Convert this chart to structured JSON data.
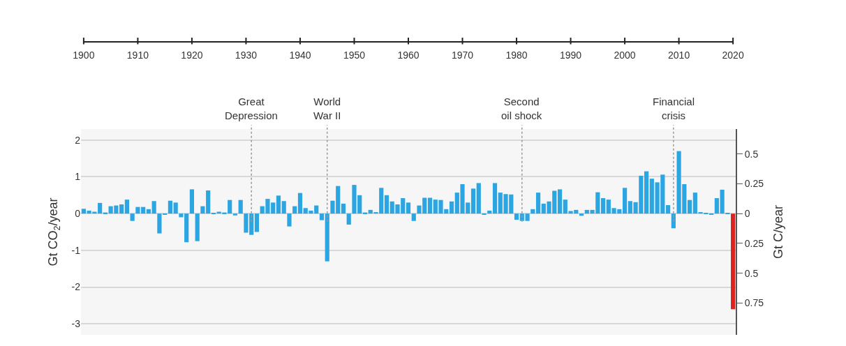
{
  "chart_data": {
    "type": "bar",
    "x": [
      1900,
      1901,
      1902,
      1903,
      1904,
      1905,
      1906,
      1907,
      1908,
      1909,
      1910,
      1911,
      1912,
      1913,
      1914,
      1915,
      1916,
      1917,
      1918,
      1919,
      1920,
      1921,
      1922,
      1923,
      1924,
      1925,
      1926,
      1927,
      1928,
      1929,
      1930,
      1931,
      1932,
      1933,
      1934,
      1935,
      1936,
      1937,
      1938,
      1939,
      1940,
      1941,
      1942,
      1943,
      1944,
      1945,
      1946,
      1947,
      1948,
      1949,
      1950,
      1951,
      1952,
      1953,
      1954,
      1955,
      1956,
      1957,
      1958,
      1959,
      1960,
      1961,
      1962,
      1963,
      1964,
      1965,
      1966,
      1967,
      1968,
      1969,
      1970,
      1971,
      1972,
      1973,
      1974,
      1975,
      1976,
      1977,
      1978,
      1979,
      1980,
      1981,
      1982,
      1983,
      1984,
      1985,
      1986,
      1987,
      1988,
      1989,
      1990,
      1991,
      1992,
      1993,
      1994,
      1995,
      1996,
      1997,
      1998,
      1999,
      2000,
      2001,
      2002,
      2003,
      2004,
      2005,
      2006,
      2007,
      2008,
      2009,
      2010,
      2011,
      2012,
      2013,
      2014,
      2015,
      2016,
      2017,
      2018,
      2019,
      2020
    ],
    "values": [
      0.13,
      0.08,
      0.05,
      0.29,
      0.03,
      0.2,
      0.22,
      0.25,
      0.38,
      -0.2,
      0.18,
      0.18,
      0.12,
      0.34,
      -0.54,
      -0.03,
      0.35,
      0.3,
      -0.1,
      -0.78,
      0.66,
      -0.75,
      0.2,
      0.63,
      0.02,
      0.05,
      0.03,
      0.37,
      -0.05,
      0.37,
      -0.52,
      -0.58,
      -0.5,
      0.2,
      0.4,
      0.3,
      0.49,
      0.34,
      -0.35,
      0.2,
      0.56,
      0.15,
      0.08,
      0.22,
      -0.18,
      -1.3,
      0.35,
      0.75,
      0.27,
      -0.3,
      0.78,
      0.5,
      0.03,
      0.1,
      0.04,
      0.7,
      0.5,
      0.33,
      0.25,
      0.42,
      0.3,
      -0.2,
      0.22,
      0.43,
      0.43,
      0.38,
      0.37,
      0.12,
      0.33,
      0.57,
      0.8,
      0.3,
      0.68,
      0.83,
      -0.03,
      0.08,
      0.83,
      0.57,
      0.53,
      0.52,
      -0.17,
      -0.2,
      -0.2,
      0.12,
      0.57,
      0.27,
      0.33,
      0.62,
      0.66,
      0.38,
      0.07,
      0.1,
      -0.06,
      0.1,
      0.1,
      0.58,
      0.42,
      0.38,
      0.15,
      0.12,
      0.7,
      0.34,
      0.31,
      1.03,
      1.15,
      0.95,
      0.85,
      1.06,
      0.23,
      -0.4,
      1.7,
      0.8,
      0.37,
      0.57,
      0.04,
      0.01,
      -0.02,
      0.42,
      0.65,
      0.01,
      -2.6
    ],
    "colors": [
      "#2ba6e3",
      "#2ba6e3",
      "#2ba6e3",
      "#2ba6e3",
      "#2ba6e3",
      "#2ba6e3",
      "#2ba6e3",
      "#2ba6e3",
      "#2ba6e3",
      "#2ba6e3",
      "#2ba6e3",
      "#2ba6e3",
      "#2ba6e3",
      "#2ba6e3",
      "#2ba6e3",
      "#2ba6e3",
      "#2ba6e3",
      "#2ba6e3",
      "#2ba6e3",
      "#2ba6e3",
      "#2ba6e3",
      "#2ba6e3",
      "#2ba6e3",
      "#2ba6e3",
      "#2ba6e3",
      "#2ba6e3",
      "#2ba6e3",
      "#2ba6e3",
      "#2ba6e3",
      "#2ba6e3",
      "#2ba6e3",
      "#2ba6e3",
      "#2ba6e3",
      "#2ba6e3",
      "#2ba6e3",
      "#2ba6e3",
      "#2ba6e3",
      "#2ba6e3",
      "#2ba6e3",
      "#2ba6e3",
      "#2ba6e3",
      "#2ba6e3",
      "#2ba6e3",
      "#2ba6e3",
      "#2ba6e3",
      "#2ba6e3",
      "#2ba6e3",
      "#2ba6e3",
      "#2ba6e3",
      "#2ba6e3",
      "#2ba6e3",
      "#2ba6e3",
      "#2ba6e3",
      "#2ba6e3",
      "#2ba6e3",
      "#2ba6e3",
      "#2ba6e3",
      "#2ba6e3",
      "#2ba6e3",
      "#2ba6e3",
      "#2ba6e3",
      "#2ba6e3",
      "#2ba6e3",
      "#2ba6e3",
      "#2ba6e3",
      "#2ba6e3",
      "#2ba6e3",
      "#2ba6e3",
      "#2ba6e3",
      "#2ba6e3",
      "#2ba6e3",
      "#2ba6e3",
      "#2ba6e3",
      "#2ba6e3",
      "#2ba6e3",
      "#2ba6e3",
      "#2ba6e3",
      "#2ba6e3",
      "#2ba6e3",
      "#2ba6e3",
      "#2ba6e3",
      "#2ba6e3",
      "#2ba6e3",
      "#2ba6e3",
      "#2ba6e3",
      "#2ba6e3",
      "#2ba6e3",
      "#2ba6e3",
      "#2ba6e3",
      "#2ba6e3",
      "#2ba6e3",
      "#2ba6e3",
      "#2ba6e3",
      "#2ba6e3",
      "#2ba6e3",
      "#2ba6e3",
      "#2ba6e3",
      "#2ba6e3",
      "#2ba6e3",
      "#2ba6e3",
      "#2ba6e3",
      "#2ba6e3",
      "#2ba6e3",
      "#2ba6e3",
      "#2ba6e3",
      "#2ba6e3",
      "#2ba6e3",
      "#2ba6e3",
      "#2ba6e3",
      "#2ba6e3",
      "#2ba6e3",
      "#2ba6e3",
      "#2ba6e3",
      "#2ba6e3",
      "#2ba6e3",
      "#2ba6e3",
      "#2ba6e3",
      "#2ba6e3",
      "#2ba6e3",
      "#2ba6e3",
      "#dd2222"
    ],
    "xlim": [
      1899.5,
      2020.5
    ],
    "xticks": [
      1900,
      1910,
      1920,
      1930,
      1940,
      1950,
      1960,
      1970,
      1980,
      1990,
      2000,
      2010,
      2020
    ],
    "ylim": [
      -3.3,
      2.3
    ],
    "yticks": [
      -3,
      -2,
      -1,
      0,
      1,
      2
    ],
    "y2lim": [
      -1.017,
      0.709
    ],
    "y2ticks": [
      0.5,
      0.25,
      0,
      {
        "value": -0.25,
        "label": "0.25"
      },
      {
        "value": -0.5,
        "label": "0.5"
      },
      {
        "value": -0.75,
        "label": "0.75"
      }
    ],
    "ylabel": "Gt CO$_{2}$/year",
    "y2label": "Gt C/year",
    "grid": "y",
    "ref_lines": [
      {
        "axis": "x",
        "value": 1931,
        "label": "Great Depression",
        "line_style": "dotted"
      },
      {
        "axis": "x",
        "value": 1945,
        "label": "World War II",
        "line_style": "dotted"
      },
      {
        "axis": "x",
        "value": 1981,
        "label": "Second oil shock",
        "line_style": "dotted"
      },
      {
        "axis": "x",
        "value": 2009,
        "label": "Financial crisis",
        "line_style": "dotted"
      }
    ]
  }
}
